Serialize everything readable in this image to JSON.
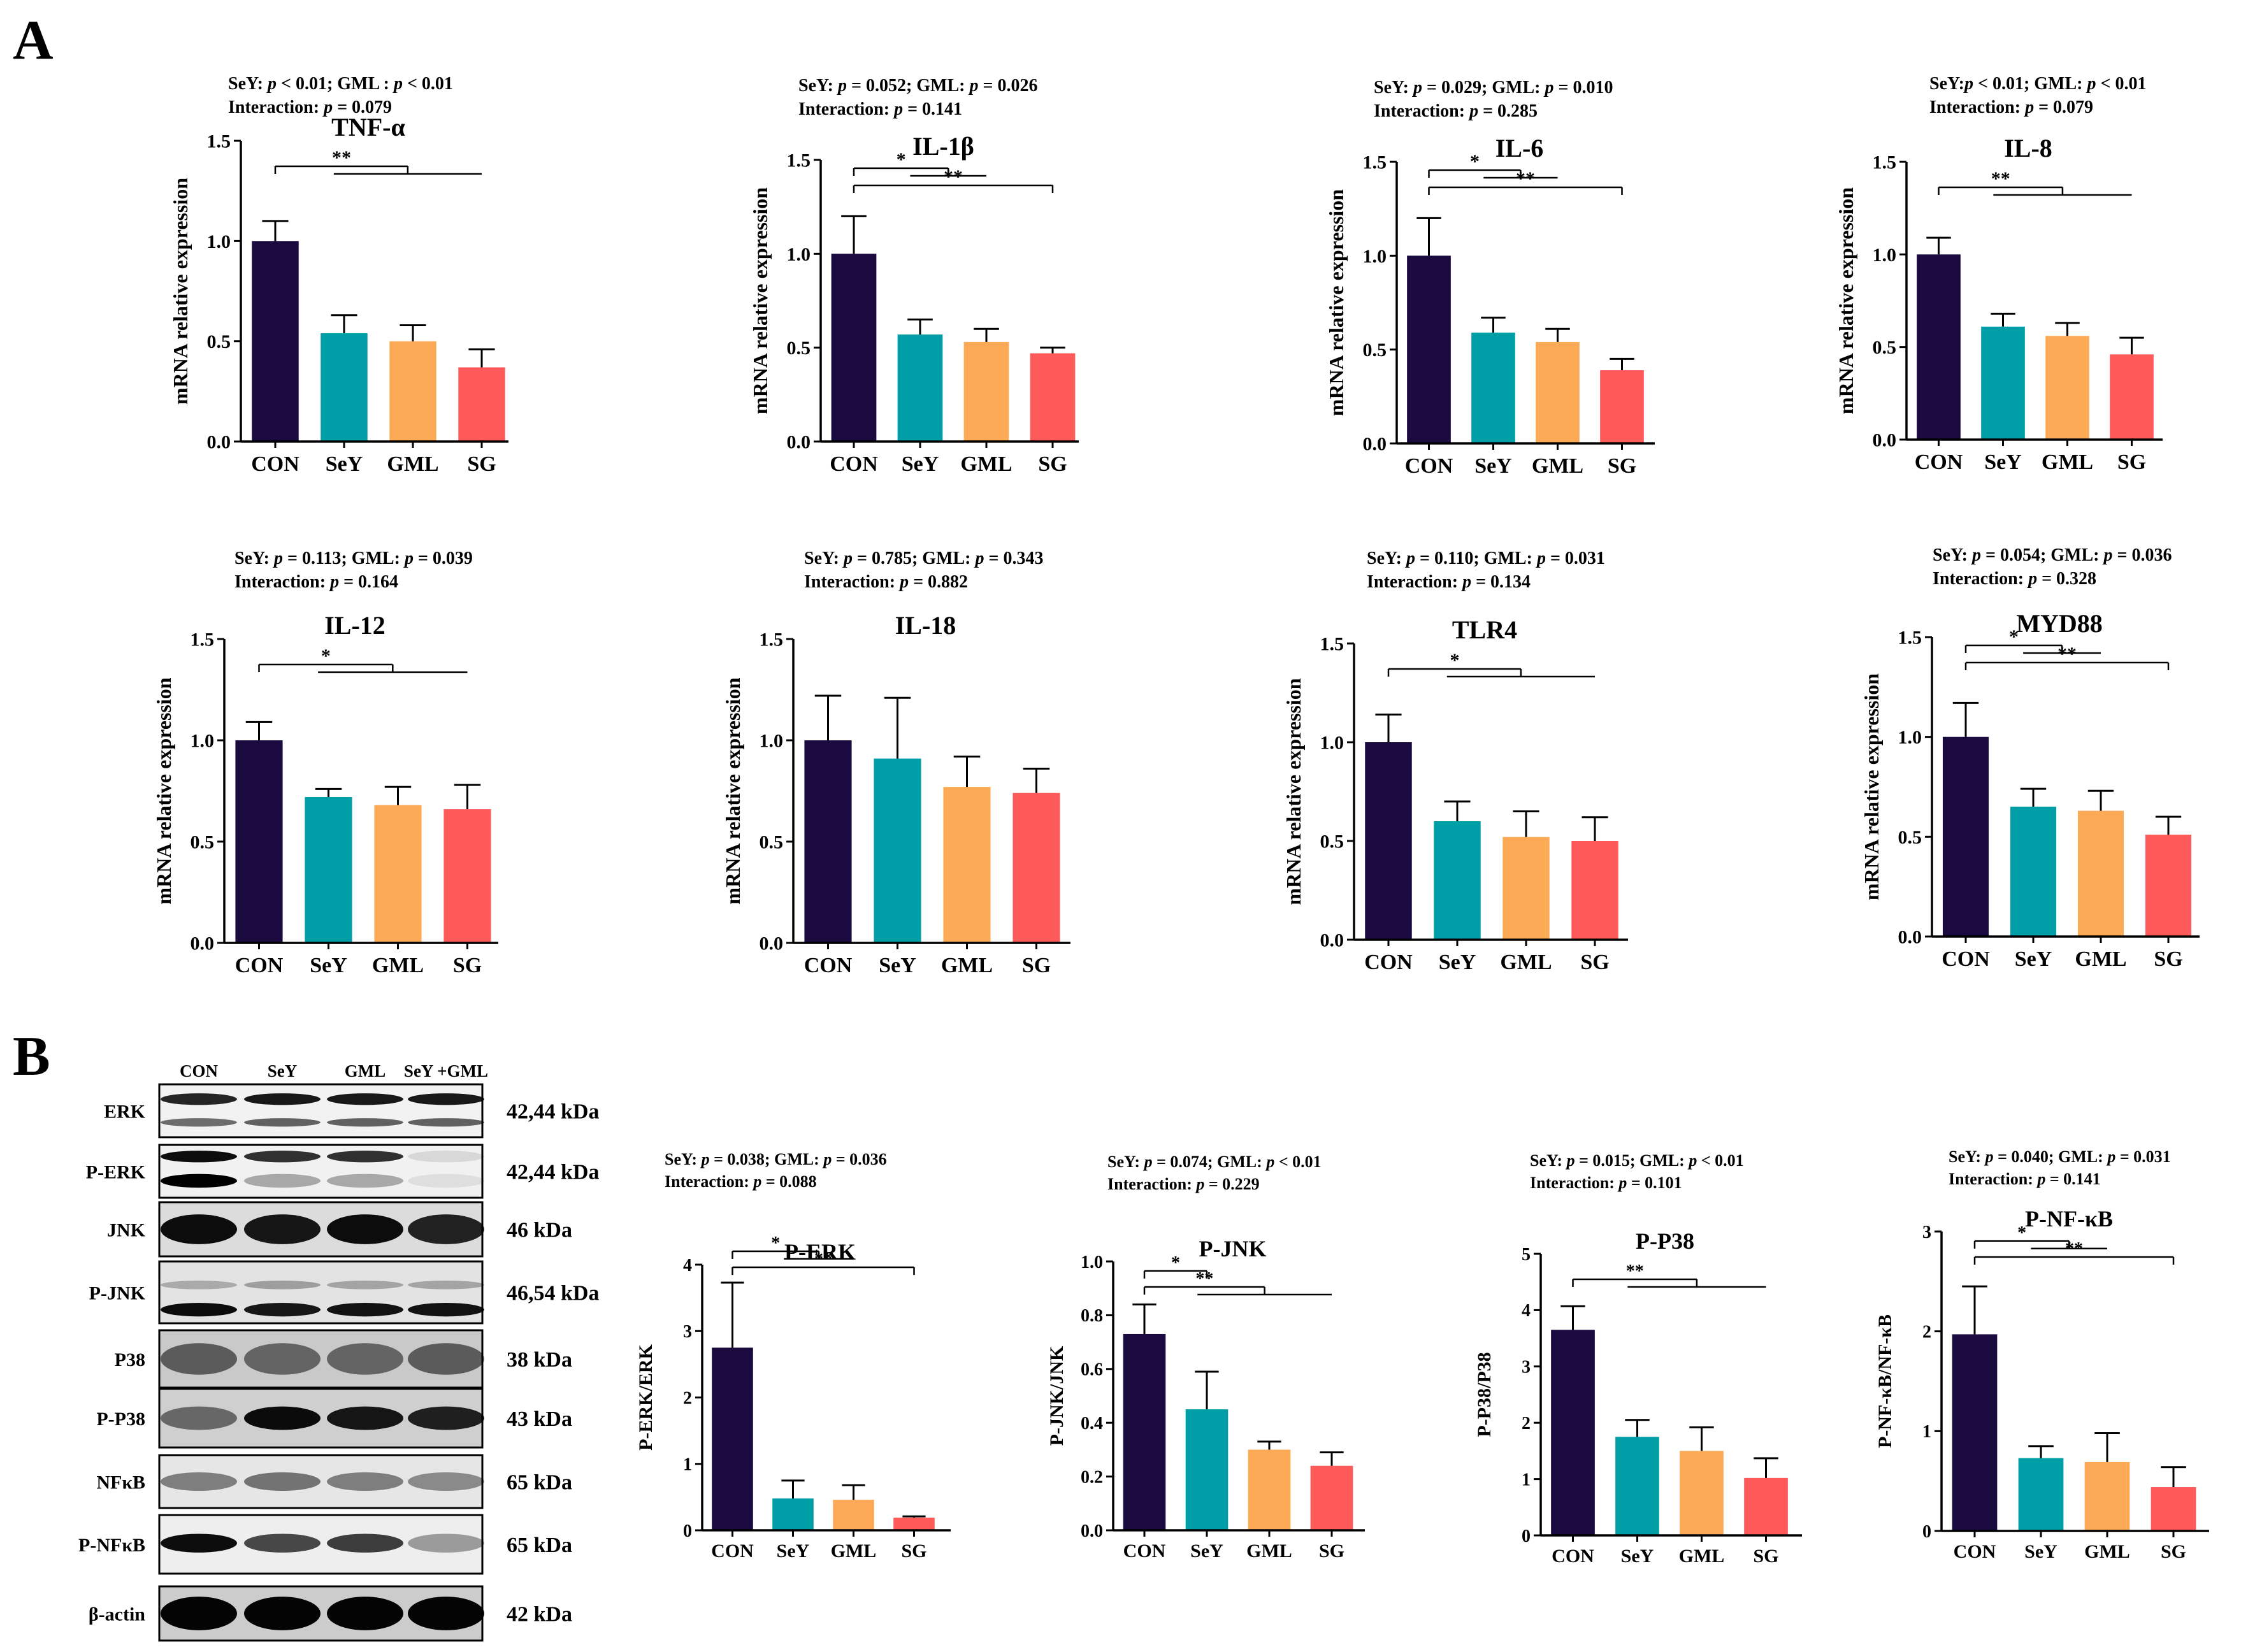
{
  "panel_labels": {
    "a": "A",
    "b": "B"
  },
  "colors": {
    "CON": "#1b0a40",
    "SeY": "#009fa8",
    "GML": "#fdaa57",
    "SG": "#ff5a5a"
  },
  "western_blot": {
    "lanes": [
      "CON",
      "SeY",
      "GML",
      "SeY +GML"
    ],
    "rows": [
      {
        "protein": "ERK",
        "size": "42,44 kDa"
      },
      {
        "protein": "P-ERK",
        "size": "42,44 kDa"
      },
      {
        "protein": "JNK",
        "size": "46 kDa"
      },
      {
        "protein": "P-JNK",
        "size": "46,54 kDa"
      },
      {
        "protein": "P38",
        "size": "38 kDa"
      },
      {
        "protein": "P-P38",
        "size": "43 kDa"
      },
      {
        "protein": "NFκB",
        "size": "65 kDa"
      },
      {
        "protein": "P-NFκB",
        "size": "65 kDa"
      },
      {
        "protein": "β-actin",
        "size": "42 kDa"
      }
    ]
  },
  "chart_data": [
    {
      "type": "bar",
      "title": "TNF-α",
      "stats_line1": "SeY: p < 0.01; GML : p < 0.01",
      "stats_line2": "Interaction: p = 0.079",
      "categories": [
        "CON",
        "SeY",
        "GML",
        "SG"
      ],
      "values": [
        1.0,
        0.54,
        0.5,
        0.37
      ],
      "errors": [
        0.1,
        0.09,
        0.08,
        0.09
      ],
      "ylabel": "mRNA relative expression",
      "ylim": [
        0,
        1.5
      ],
      "yticks": [
        "0.0",
        "0.5",
        "1.0",
        "1.5"
      ],
      "significance": [
        {
          "kind": "group",
          "label": "**",
          "from": 0,
          "to": 3
        }
      ]
    },
    {
      "type": "bar",
      "title": "IL-1β",
      "stats_line1": "SeY: p = 0.052; GML: p = 0.026",
      "stats_line2": "Interaction: p = 0.141",
      "categories": [
        "CON",
        "SeY",
        "GML",
        "SG"
      ],
      "values": [
        1.0,
        0.57,
        0.53,
        0.47
      ],
      "errors": [
        0.2,
        0.08,
        0.07,
        0.03
      ],
      "ylabel": "mRNA relative expression",
      "ylim": [
        0,
        1.5
      ],
      "yticks": [
        "0.0",
        "0.5",
        "1.0",
        "1.5"
      ],
      "significance": [
        {
          "kind": "group",
          "label": "*",
          "from": 0,
          "to": 2
        },
        {
          "kind": "line",
          "label": "**",
          "from": 0,
          "to": 3
        }
      ]
    },
    {
      "type": "bar",
      "title": "IL-6",
      "stats_line1": "SeY: p = 0.029; GML: p = 0.010",
      "stats_line2": "Interaction: p = 0.285",
      "categories": [
        "CON",
        "SeY",
        "GML",
        "SG"
      ],
      "values": [
        1.0,
        0.59,
        0.54,
        0.39
      ],
      "errors": [
        0.2,
        0.08,
        0.07,
        0.06
      ],
      "ylabel": "mRNA relative expression",
      "ylim": [
        0,
        1.5
      ],
      "yticks": [
        "0.0",
        "0.5",
        "1.0",
        "1.5"
      ],
      "significance": [
        {
          "kind": "group",
          "label": "*",
          "from": 0,
          "to": 2
        },
        {
          "kind": "line",
          "label": "**",
          "from": 0,
          "to": 3
        }
      ]
    },
    {
      "type": "bar",
      "title": "IL-8",
      "stats_line1": "SeY:p < 0.01; GML: p < 0.01",
      "stats_line2": "Interaction: p = 0.079",
      "categories": [
        "CON",
        "SeY",
        "GML",
        "SG"
      ],
      "values": [
        1.0,
        0.61,
        0.56,
        0.46
      ],
      "errors": [
        0.09,
        0.07,
        0.07,
        0.09
      ],
      "ylabel": "mRNA relative expression",
      "ylim": [
        0,
        1.5
      ],
      "yticks": [
        "0.0",
        "0.5",
        "1.0",
        "1.5"
      ],
      "significance": [
        {
          "kind": "group",
          "label": "**",
          "from": 0,
          "to": 3
        }
      ]
    },
    {
      "type": "bar",
      "title": "IL-12",
      "stats_line1": "SeY: p = 0.113; GML: p = 0.039",
      "stats_line2": "Interaction: p = 0.164",
      "categories": [
        "CON",
        "SeY",
        "GML",
        "SG"
      ],
      "values": [
        1.0,
        0.72,
        0.68,
        0.66
      ],
      "errors": [
        0.09,
        0.04,
        0.09,
        0.12
      ],
      "ylabel": "mRNA relative expression",
      "ylim": [
        0,
        1.5
      ],
      "yticks": [
        "0.0",
        "0.5",
        "1.0",
        "1.5"
      ],
      "significance": [
        {
          "kind": "group",
          "label": "*",
          "from": 0,
          "to": 3
        }
      ]
    },
    {
      "type": "bar",
      "title": "IL-18",
      "stats_line1": "SeY: p = 0.785; GML: p = 0.343",
      "stats_line2": "Interaction: p = 0.882",
      "categories": [
        "CON",
        "SeY",
        "GML",
        "SG"
      ],
      "values": [
        1.0,
        0.91,
        0.77,
        0.74
      ],
      "errors": [
        0.22,
        0.3,
        0.15,
        0.12
      ],
      "ylabel": "mRNA relative expression",
      "ylim": [
        0,
        1.5
      ],
      "yticks": [
        "0.0",
        "0.5",
        "1.0",
        "1.5"
      ],
      "significance": []
    },
    {
      "type": "bar",
      "title": "TLR4",
      "stats_line1": "SeY: p = 0.110; GML: p = 0.031",
      "stats_line2": "Interaction: p = 0.134",
      "categories": [
        "CON",
        "SeY",
        "GML",
        "SG"
      ],
      "values": [
        1.0,
        0.6,
        0.52,
        0.5
      ],
      "errors": [
        0.14,
        0.1,
        0.13,
        0.12
      ],
      "ylabel": "mRNA relative expression",
      "ylim": [
        0,
        1.5
      ],
      "yticks": [
        "0.0",
        "0.5",
        "1.0",
        "1.5"
      ],
      "significance": [
        {
          "kind": "group",
          "label": "*",
          "from": 0,
          "to": 3
        }
      ]
    },
    {
      "type": "bar",
      "title": "MYD88",
      "stats_line1": "SeY: p = 0.054; GML: p = 0.036",
      "stats_line2": "Interaction: p = 0.328",
      "categories": [
        "CON",
        "SeY",
        "GML",
        "SG"
      ],
      "values": [
        1.0,
        0.65,
        0.63,
        0.51
      ],
      "errors": [
        0.17,
        0.09,
        0.1,
        0.09
      ],
      "ylabel": "mRNA relative expression",
      "ylim": [
        0,
        1.5
      ],
      "yticks": [
        "0.0",
        "0.5",
        "1.0",
        "1.5"
      ],
      "significance": [
        {
          "kind": "group",
          "label": "*",
          "from": 0,
          "to": 2
        },
        {
          "kind": "line",
          "label": "**",
          "from": 0,
          "to": 3
        }
      ]
    },
    {
      "type": "bar",
      "title": "P-ERK",
      "stats_line1": "SeY: p = 0.038; GML: p = 0.036",
      "stats_line2": "Interaction: p = 0.088",
      "categories": [
        "CON",
        "SeY",
        "GML",
        "SG"
      ],
      "values": [
        2.75,
        0.48,
        0.46,
        0.19
      ],
      "errors": [
        0.98,
        0.27,
        0.22,
        0.02
      ],
      "ylabel": "P-ERK/ERK",
      "ylim": [
        0,
        4
      ],
      "yticks": [
        "0",
        "1",
        "2",
        "3",
        "4"
      ],
      "significance": [
        {
          "kind": "group",
          "label": "*",
          "from": 0,
          "to": 2
        },
        {
          "kind": "line",
          "label": "**",
          "from": 0,
          "to": 3
        }
      ]
    },
    {
      "type": "bar",
      "title": "P-JNK",
      "stats_line1": "SeY: p = 0.074; GML: p < 0.01",
      "stats_line2": "Interaction: p = 0.229",
      "categories": [
        "CON",
        "SeY",
        "GML",
        "SG"
      ],
      "values": [
        0.73,
        0.45,
        0.3,
        0.24
      ],
      "errors": [
        0.11,
        0.14,
        0.03,
        0.05
      ],
      "ylabel": "P-JNK/JNK",
      "ylim": [
        0,
        1.0
      ],
      "yticks": [
        "0.0",
        "0.2",
        "0.4",
        "0.6",
        "0.8",
        "1.0"
      ],
      "significance": [
        {
          "kind": "single",
          "label": "*",
          "from": 0,
          "to": 1
        },
        {
          "kind": "group",
          "label": "**",
          "from": 0,
          "to": 3
        }
      ]
    },
    {
      "type": "bar",
      "title": "P-P38",
      "stats_line1": "SeY: p = 0.015; GML: p < 0.01",
      "stats_line2": "Interaction: p = 0.101",
      "categories": [
        "CON",
        "SeY",
        "GML",
        "SG"
      ],
      "values": [
        3.65,
        1.75,
        1.5,
        1.02
      ],
      "errors": [
        0.42,
        0.3,
        0.42,
        0.35
      ],
      "ylabel": "P-P38/P38",
      "ylim": [
        0,
        5
      ],
      "yticks": [
        "0",
        "1",
        "2",
        "3",
        "4",
        "5"
      ],
      "significance": [
        {
          "kind": "group",
          "label": "**",
          "from": 0,
          "to": 3
        }
      ]
    },
    {
      "type": "bar",
      "title": "P-NF-κB",
      "stats_line1": "SeY: p = 0.040; GML: p = 0.031",
      "stats_line2": "Interaction: p = 0.141",
      "categories": [
        "CON",
        "SeY",
        "GML",
        "SG"
      ],
      "values": [
        1.97,
        0.73,
        0.69,
        0.44
      ],
      "errors": [
        0.48,
        0.12,
        0.29,
        0.2
      ],
      "ylabel": "P-NF-κB/NF-κB",
      "ylim": [
        0,
        3
      ],
      "yticks": [
        "0",
        "1",
        "2",
        "3"
      ],
      "significance": [
        {
          "kind": "group",
          "label": "*",
          "from": 0,
          "to": 2
        },
        {
          "kind": "line",
          "label": "**",
          "from": 0,
          "to": 3
        }
      ]
    }
  ]
}
